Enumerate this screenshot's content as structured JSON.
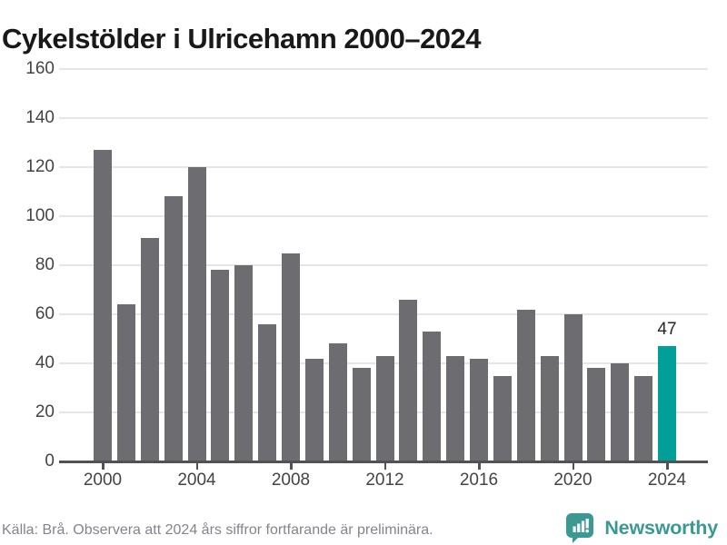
{
  "title": "Cykelstölder i Ulricehamn 2000–2024",
  "source_note": "Källa: Brå. Observera att 2024 års siffror fortfarande är preliminära.",
  "branding": {
    "wordmark": "Newsworthy",
    "icon": "newsworthy-speech-bubble-bar-chart-icon",
    "color": "#3a9a93"
  },
  "colors": {
    "bar": "#6d6c71",
    "highlight": "#00a099",
    "gridline": "#e6e6e6",
    "axis": "#515156",
    "tick_label": "#454349",
    "title": "#191919",
    "source": "#84848e",
    "value_label": "#2a2627"
  },
  "chart_data": {
    "type": "bar",
    "title": "Cykelstölder i Ulricehamn 2000–2024",
    "categories": [
      2000,
      2001,
      2002,
      2003,
      2004,
      2005,
      2006,
      2007,
      2008,
      2009,
      2010,
      2011,
      2012,
      2013,
      2014,
      2015,
      2016,
      2017,
      2018,
      2019,
      2020,
      2021,
      2022,
      2023,
      2024
    ],
    "values": [
      127,
      64,
      91,
      108,
      120,
      78,
      80,
      56,
      85,
      42,
      48,
      38,
      43,
      66,
      53,
      43,
      42,
      35,
      62,
      43,
      60,
      38,
      40,
      35,
      47
    ],
    "highlight_category": 2024,
    "value_labels": [
      {
        "category": 2024,
        "text": "47"
      }
    ],
    "ylabel": "",
    "xlabel": "",
    "ylim": [
      0,
      160
    ],
    "ytick_step": 20,
    "xticks": [
      2000,
      2004,
      2008,
      2012,
      2016,
      2020,
      2024
    ],
    "grid": true,
    "legend": false
  }
}
